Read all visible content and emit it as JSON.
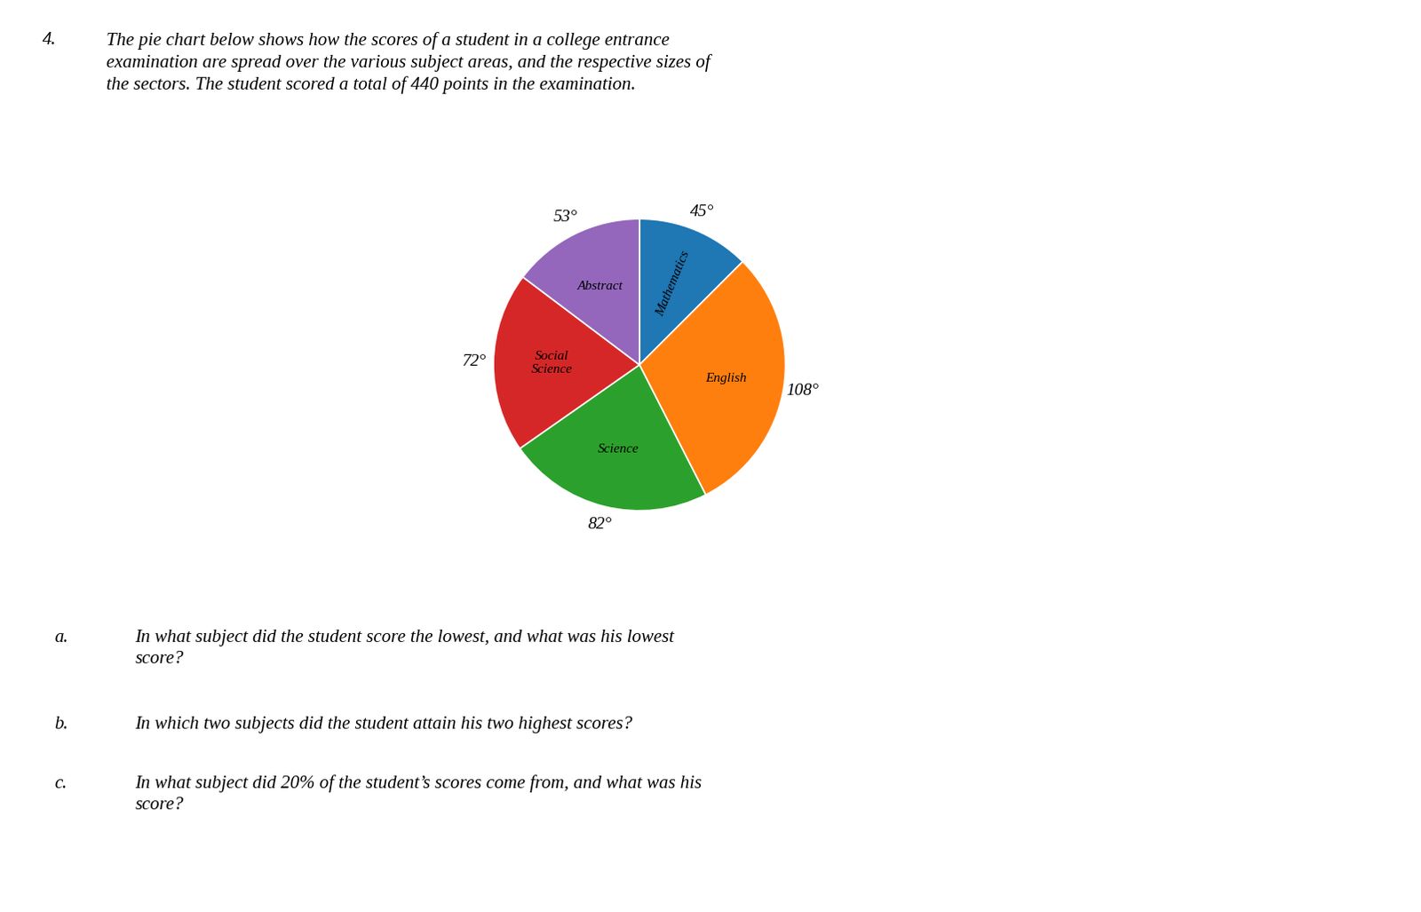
{
  "chart_data": {
    "type": "pie",
    "title": "The pie chart below shows how the scores of a student in a college entrance\nexamination are spread over the various subject areas, and the respective sizes of\nthe sectors. The student scored a total of 440 points in the examination.",
    "categories": [
      "Mathematics",
      "English",
      "Science",
      "Social\nScience",
      "Abstract"
    ],
    "values": [
      45,
      108,
      82,
      72,
      53
    ],
    "value_labels": [
      "45°",
      "108°",
      "82°",
      "72°",
      "53°"
    ],
    "data_labels": true,
    "annotations": [
      "4.",
      "a.",
      "In what subject did the student score the lowest, and what was his lowest\nscore?",
      "b.",
      "In which two subjects did the student attain his two highest scores?",
      "c.",
      "In what subject did 20% of the student’s scores come from, and what was his\nscore?"
    ]
  }
}
